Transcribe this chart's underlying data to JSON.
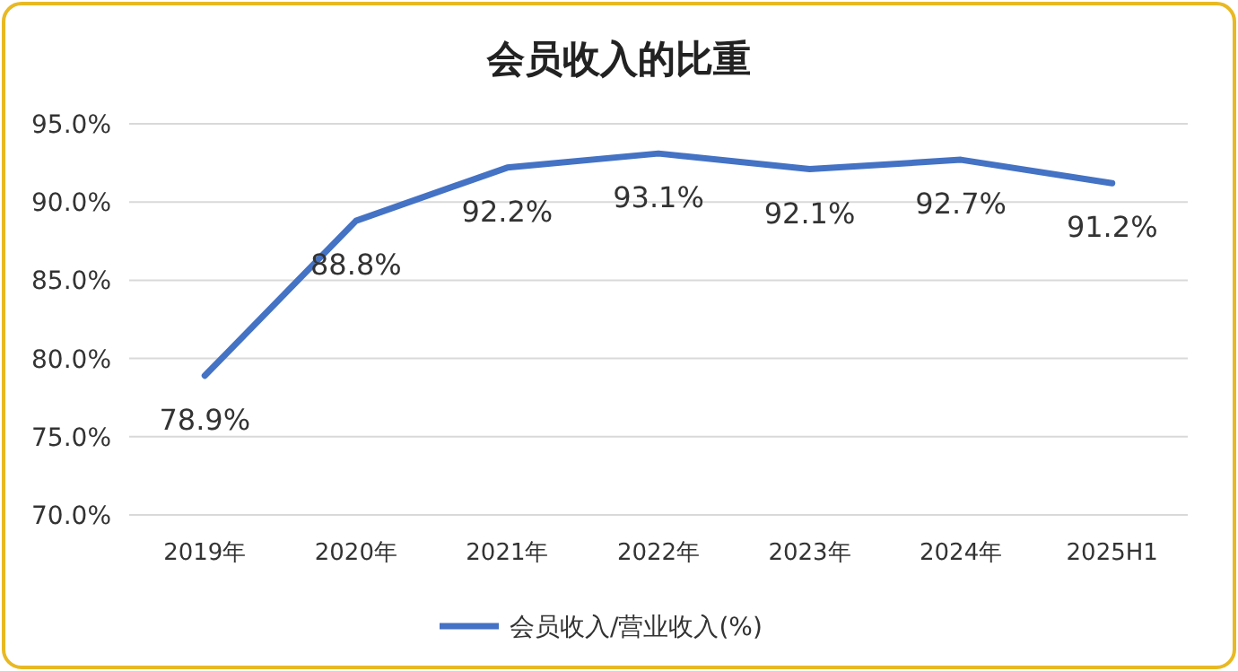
{
  "chart_data": {
    "type": "line",
    "title": "会员收入的比重",
    "categories": [
      "2019年",
      "2020年",
      "2021年",
      "2022年",
      "2023年",
      "2024年",
      "2025H1"
    ],
    "series": [
      {
        "name": "会员收入/营业收入(%)",
        "color": "#4472c4",
        "values": [
          78.9,
          88.8,
          92.2,
          93.1,
          92.1,
          92.7,
          91.2
        ],
        "value_labels": [
          "78.9%",
          "88.8%",
          "92.2%",
          "93.1%",
          "92.1%",
          "92.7%",
          "91.2%"
        ]
      }
    ],
    "ylim": [
      70,
      95
    ],
    "yticks": [
      {
        "value": 70,
        "label": "70.0%"
      },
      {
        "value": 75,
        "label": "75.0%"
      },
      {
        "value": 80,
        "label": "80.0%"
      },
      {
        "value": 85,
        "label": "85.0%"
      },
      {
        "value": 90,
        "label": "90.0%"
      },
      {
        "value": 95,
        "label": "95.0%"
      }
    ],
    "grid": "y",
    "legend": "bottom",
    "marker": "none",
    "line_style": "solid"
  }
}
